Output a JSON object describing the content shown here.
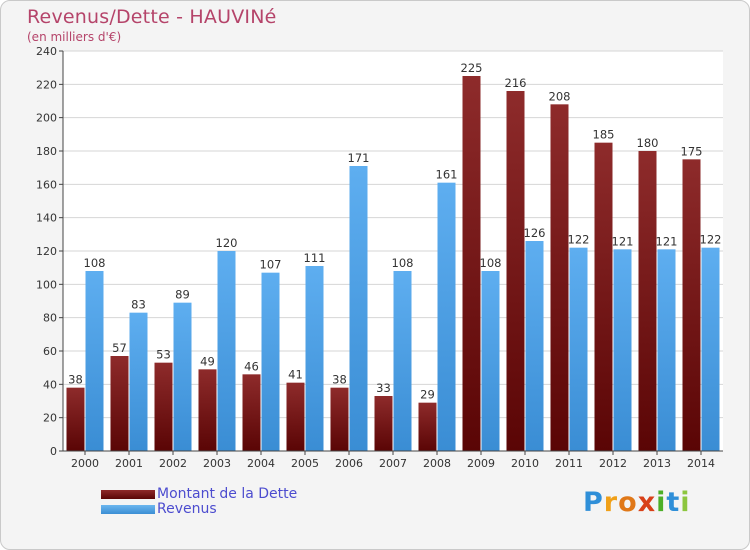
{
  "header": {
    "title": "Revenus/Dette - HAUVINé",
    "subtitle": "(en milliers d'€)"
  },
  "chart_data": {
    "type": "bar",
    "title": "Revenus/Dette - HAUVINé",
    "subtitle": "(en milliers d'€)",
    "xlabel": "",
    "ylabel": "",
    "ylim": [
      0,
      240
    ],
    "yticks": [
      0,
      20,
      40,
      60,
      80,
      100,
      120,
      140,
      160,
      180,
      200,
      220,
      240
    ],
    "grid": true,
    "categories": [
      "2000",
      "2001",
      "2002",
      "2003",
      "2004",
      "2005",
      "2006",
      "2007",
      "2008",
      "2009",
      "2010",
      "2011",
      "2012",
      "2013",
      "2014"
    ],
    "series": [
      {
        "name": "Montant de la Dette",
        "color": "#7a1a1a",
        "values": [
          38,
          57,
          53,
          49,
          46,
          41,
          38,
          33,
          29,
          225,
          216,
          208,
          185,
          180,
          175
        ]
      },
      {
        "name": "Revenus",
        "color": "#4a9fe0",
        "values": [
          108,
          83,
          89,
          120,
          107,
          111,
          171,
          108,
          161,
          108,
          126,
          122,
          121,
          121,
          122
        ]
      }
    ],
    "legend_position": "bottom-left"
  },
  "legend": {
    "items": [
      {
        "label": "Montant de la Dette"
      },
      {
        "label": "Revenus"
      }
    ]
  },
  "brand": {
    "letters": [
      "P",
      "r",
      "o",
      "x",
      "i",
      "t",
      "i"
    ]
  }
}
